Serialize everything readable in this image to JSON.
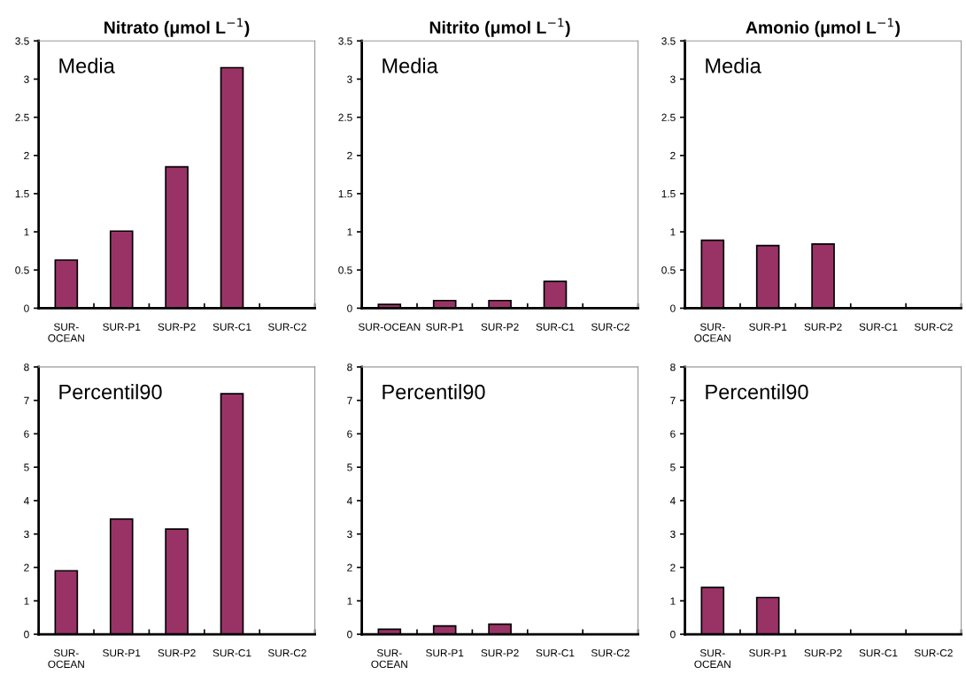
{
  "chart_data": [
    {
      "type": "bar",
      "title": "Nitrato (μmol L$^{−1}$)",
      "categories": [
        "SUR-\nOCEAN",
        "SUR-P1",
        "SUR-P2",
        "SUR-C1",
        "SUR-C2"
      ],
      "values": [
        0.63,
        1.01,
        1.85,
        3.15,
        null
      ],
      "color": "#993366",
      "ylim": [
        0,
        3.5
      ],
      "yticks": [
        0,
        0.5,
        1,
        1.5,
        2,
        2.5,
        3,
        3.5
      ],
      "grid": false,
      "annotations": [
        "Media"
      ]
    },
    {
      "type": "bar",
      "title": "Nitrito (μmol L$^{−1}$)",
      "categories": [
        "SUR-OCEAN",
        "SUR-P1",
        "SUR-P2",
        "SUR-C1",
        "SUR-C2"
      ],
      "values": [
        0.05,
        0.1,
        0.1,
        0.35,
        null
      ],
      "color": "#993366",
      "ylim": [
        0,
        3.5
      ],
      "yticks": [
        0,
        0.5,
        1,
        1.5,
        2,
        2.5,
        3,
        3.5
      ],
      "grid": false,
      "annotations": [
        "Media"
      ]
    },
    {
      "type": "bar",
      "title": "Amonio (μmol L$^{−1}$)",
      "categories": [
        "SUR-\nOCEAN",
        "SUR-P1",
        "SUR-P2",
        "SUR-C1",
        "SUR-C2"
      ],
      "values": [
        0.89,
        0.82,
        0.84,
        null,
        null
      ],
      "color": "#993366",
      "ylim": [
        0,
        3.5
      ],
      "yticks": [
        0,
        0.5,
        1,
        1.5,
        2,
        2.5,
        3,
        3.5
      ],
      "grid": false,
      "annotations": [
        "Media"
      ]
    },
    {
      "type": "bar",
      "categories": [
        "SUR-\nOCEAN",
        "SUR-P1",
        "SUR-P2",
        "SUR-C1",
        "SUR-C2"
      ],
      "values": [
        1.9,
        3.45,
        3.15,
        7.2,
        null
      ],
      "color": "#993366",
      "ylim": [
        0,
        8
      ],
      "yticks": [
        0,
        1,
        2,
        3,
        4,
        5,
        6,
        7,
        8
      ],
      "grid": false,
      "annotations": [
        "Percentil90"
      ]
    },
    {
      "type": "bar",
      "categories": [
        "SUR-\nOCEAN",
        "SUR-P1",
        "SUR-P2",
        "SUR-C1",
        "SUR-C2"
      ],
      "values": [
        0.15,
        0.25,
        0.3,
        null,
        null
      ],
      "color": "#993366",
      "ylim": [
        0,
        8
      ],
      "yticks": [
        0,
        1,
        2,
        3,
        4,
        5,
        6,
        7,
        8
      ],
      "grid": false,
      "annotations": [
        "Percentil90"
      ]
    },
    {
      "type": "bar",
      "categories": [
        "SUR-\nOCEAN",
        "SUR-P1",
        "SUR-P2",
        "SUR-C1",
        "SUR-C2"
      ],
      "values": [
        1.4,
        1.1,
        null,
        null,
        null
      ],
      "color": "#993366",
      "ylim": [
        0,
        8
      ],
      "yticks": [
        0,
        1,
        2,
        3,
        4,
        5,
        6,
        7,
        8
      ],
      "grid": false,
      "annotations": [
        "Percentil90"
      ]
    }
  ]
}
